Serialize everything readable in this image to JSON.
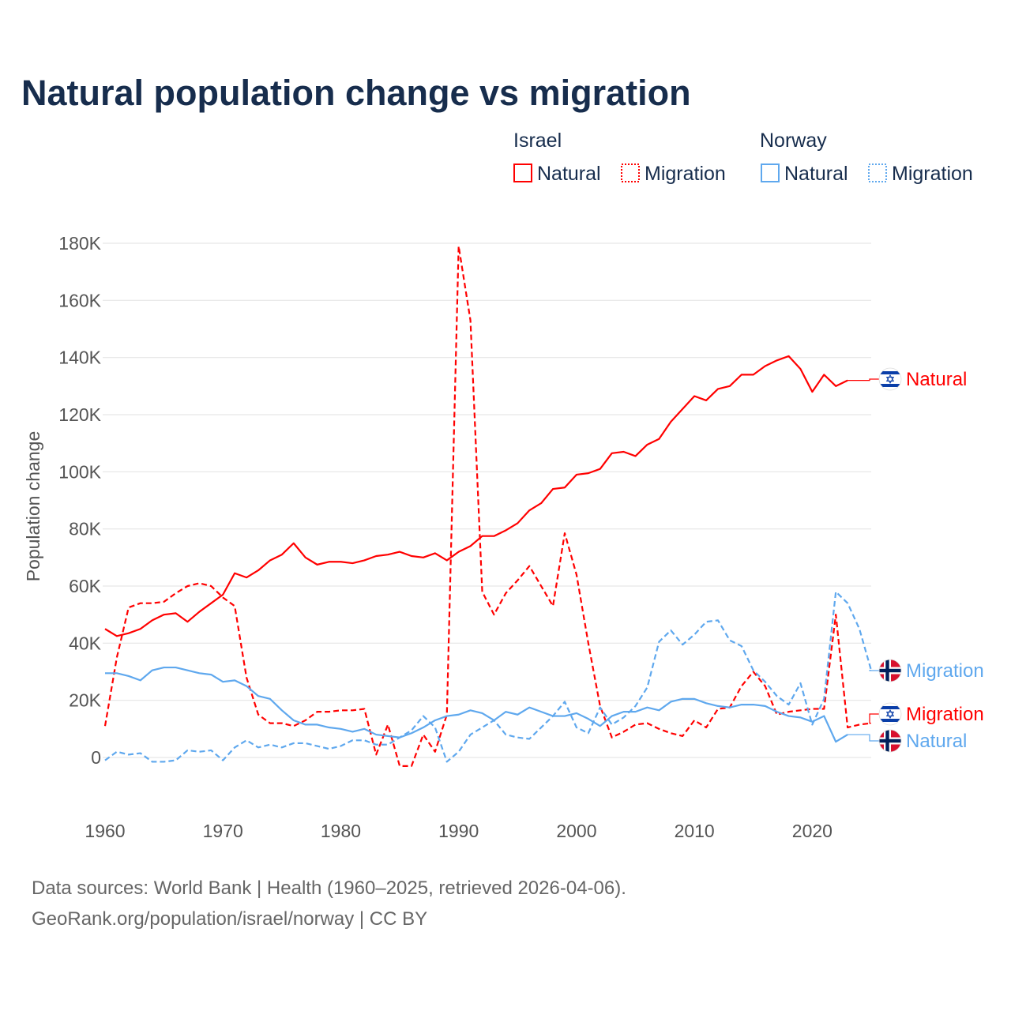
{
  "title": "Natural population change vs migration",
  "legend": {
    "groups": [
      {
        "name": "Israel",
        "items": [
          {
            "label": "Natural",
            "style": "solid"
          },
          {
            "label": "Migration",
            "style": "dotted"
          }
        ],
        "color": "#ff0000"
      },
      {
        "name": "Norway",
        "items": [
          {
            "label": "Natural",
            "style": "solid"
          },
          {
            "label": "Migration",
            "style": "dotted"
          }
        ],
        "color": "#5fa8ee"
      }
    ]
  },
  "footer": {
    "line1": "Data sources: World Bank | Health (1960–2025, retrieved 2026-04-06).",
    "line2": "GeoRank.org/population/israel/norway | CC BY"
  },
  "chart_data": {
    "type": "line",
    "title": "Natural population change vs migration",
    "xlabel": "",
    "ylabel": "Population change",
    "xlim": [
      1960,
      2025
    ],
    "ylim": [
      -10,
      180
    ],
    "x_ticks": [
      1960,
      1970,
      1980,
      1990,
      2000,
      2010,
      2020
    ],
    "x_tick_labels": [
      "1960",
      "1970",
      "1980",
      "1990",
      "2000",
      "2010",
      "2020"
    ],
    "y_ticks": [
      0,
      20,
      40,
      60,
      80,
      100,
      120,
      140,
      160,
      180
    ],
    "y_tick_labels": [
      "0",
      "20K",
      "40K",
      "60K",
      "80K",
      "100K",
      "120K",
      "140K",
      "160K",
      "180K"
    ],
    "y_units": "thousands",
    "grid": true,
    "legend_position": "top-right",
    "start_year": 1960,
    "series": [
      {
        "name": "Israel Natural",
        "country": "Israel",
        "end_label": "Natural",
        "color": "#ff0000",
        "dash": false,
        "values": [
          45,
          42.5,
          43.5,
          45,
          48,
          50,
          50.5,
          47.5,
          51,
          54,
          57,
          64.5,
          63,
          65.5,
          69,
          71,
          75,
          70,
          67.5,
          68.5,
          68.5,
          68,
          69,
          70.5,
          71,
          72,
          70.5,
          70,
          71.5,
          69,
          72,
          74,
          77.5,
          77.5,
          79.5,
          82,
          86.5,
          89,
          94,
          94.5,
          99,
          99.5,
          101,
          106.5,
          107,
          105.5,
          109.5,
          111.5,
          117.5,
          122,
          126.5,
          125,
          129,
          130,
          134,
          134,
          137,
          139,
          140.5,
          136,
          128,
          134,
          130,
          132
        ]
      },
      {
        "name": "Israel Migration",
        "country": "Israel",
        "end_label": "Migration",
        "color": "#ff0000",
        "dash": true,
        "values": [
          11,
          35,
          52.5,
          54,
          54,
          54.5,
          57.5,
          60,
          61,
          60,
          56,
          53,
          28,
          15,
          12,
          12,
          11,
          13,
          16,
          16,
          16.5,
          16.5,
          17,
          1,
          11.5,
          -3,
          -3,
          8,
          2,
          15,
          179,
          153,
          58,
          50,
          57.5,
          62,
          67,
          60,
          53,
          78.5,
          64,
          40,
          18,
          7,
          9,
          11.5,
          12,
          10,
          8.5,
          7.5,
          13,
          10.5,
          17,
          17.5,
          25,
          30,
          25,
          15,
          16,
          16.5,
          17,
          17,
          50,
          10.5,
          11.5,
          12
        ]
      },
      {
        "name": "Norway Natural",
        "country": "Norway",
        "end_label": "Natural",
        "color": "#5fa8ee",
        "dash": false,
        "values": [
          29.5,
          29.5,
          28.5,
          27,
          30.5,
          31.5,
          31.5,
          30.5,
          29.5,
          29,
          26.5,
          27,
          25,
          21.5,
          20.5,
          16.5,
          13,
          11.5,
          11.5,
          10.5,
          10,
          9,
          10,
          8,
          7.5,
          7,
          8.5,
          10.5,
          13,
          14.5,
          15,
          16.5,
          15.5,
          13,
          16,
          15,
          17.5,
          16,
          14.5,
          14.5,
          15.5,
          13.5,
          11,
          14.5,
          16,
          16,
          17.5,
          16.5,
          19.5,
          20.5,
          20.5,
          19,
          18,
          17.5,
          18.5,
          18.5,
          18,
          16,
          14.5,
          14,
          12.5,
          14.5,
          5.5,
          8
        ]
      },
      {
        "name": "Norway Migration",
        "country": "Norway",
        "end_label": "Migration",
        "color": "#5fa8ee",
        "dash": true,
        "values": [
          -1,
          2,
          1,
          1.5,
          -1.5,
          -1.5,
          -1,
          2.5,
          2,
          2.5,
          -1,
          3.5,
          6,
          3.5,
          4.5,
          3.5,
          5,
          5,
          4,
          3,
          4,
          6,
          6,
          4.5,
          4.5,
          7,
          9.5,
          14.5,
          10.5,
          -1.5,
          2,
          8,
          10.5,
          13,
          8,
          7,
          6.5,
          10.5,
          14.5,
          19.5,
          10.5,
          8.5,
          17.5,
          11.5,
          14,
          18,
          24.5,
          40.5,
          44.5,
          39.5,
          43,
          47.5,
          48,
          41,
          39,
          30.5,
          26.5,
          21.5,
          18.5,
          26,
          11.5,
          20.5,
          58,
          54,
          45,
          30.5
        ]
      }
    ]
  }
}
